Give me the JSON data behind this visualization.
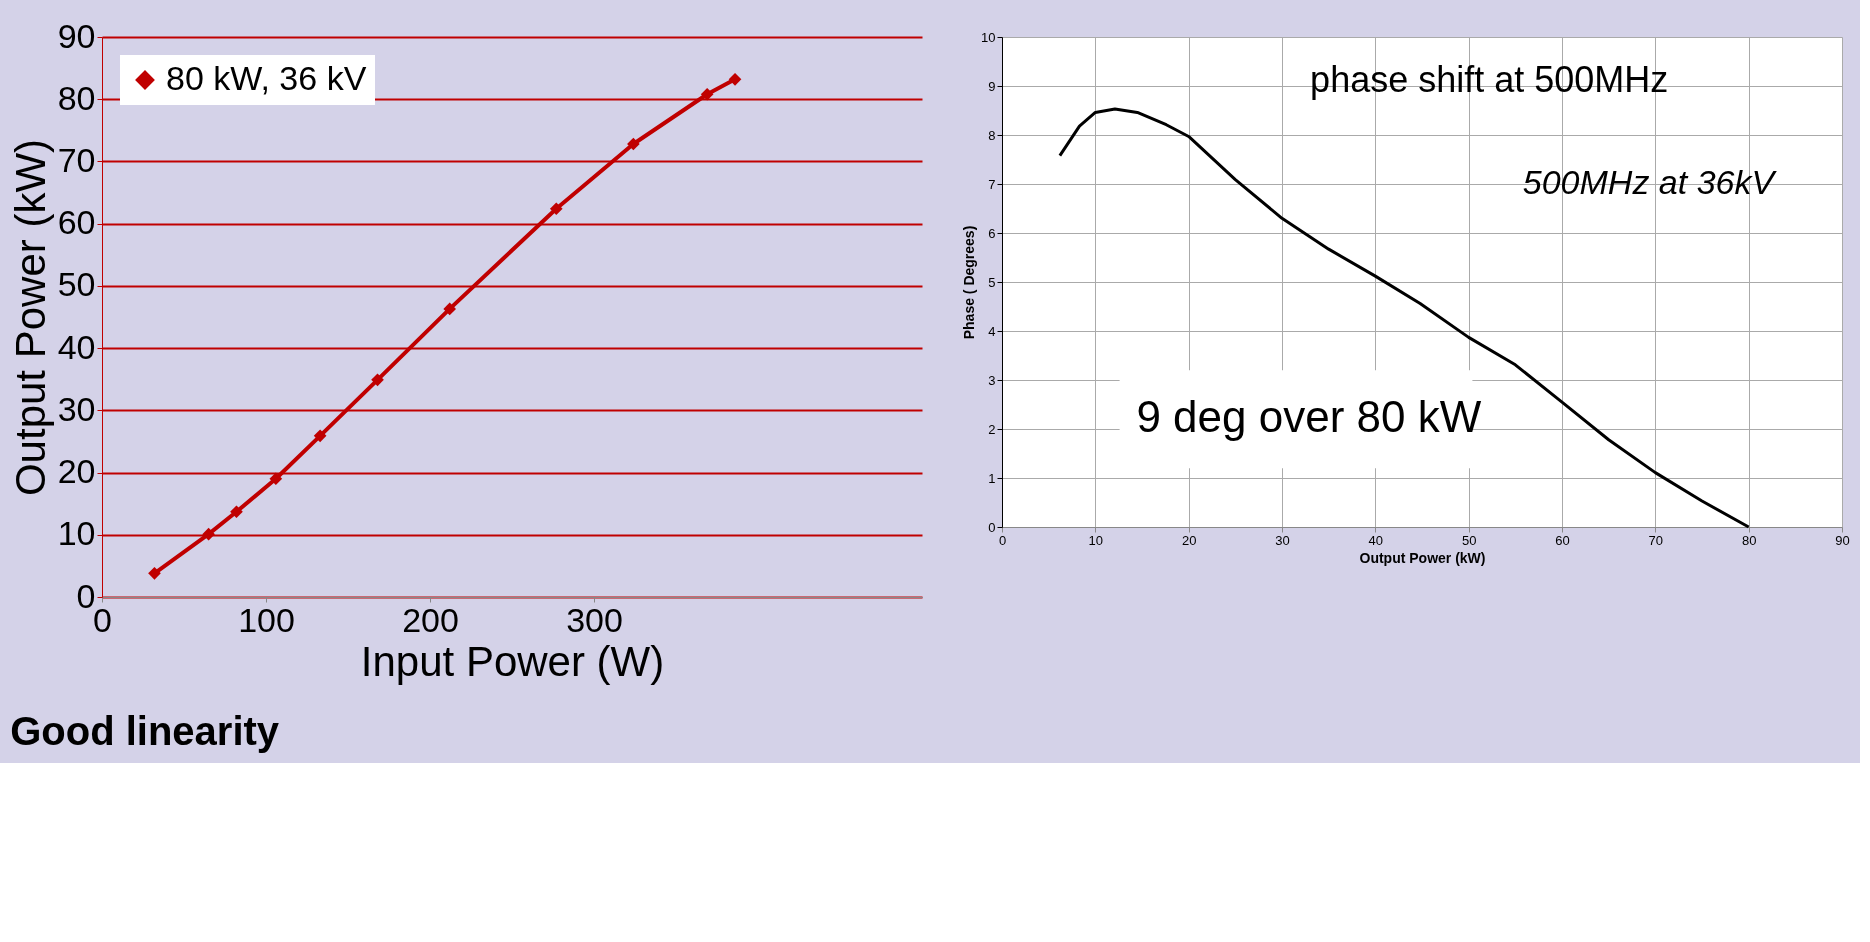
{
  "chart_data": [
    {
      "type": "line",
      "xlabel": "Input Power (W)",
      "ylabel": "Output Power (kW)",
      "x": [
        32,
        65,
        82,
        106,
        133,
        168,
        212,
        277,
        324,
        369,
        386
      ],
      "series": [
        {
          "name": "80 kW, 36 kV",
          "color": "#c00000",
          "values": [
            3.8,
            10.1,
            13.7,
            19.0,
            25.9,
            34.9,
            46.3,
            62.4,
            72.8,
            80.8,
            83.2
          ]
        }
      ],
      "xlim": [
        0,
        500
      ],
      "xticks": [
        0,
        100,
        200,
        300
      ],
      "ylim": [
        0,
        90
      ],
      "yticks": [
        0,
        10,
        20,
        30,
        40,
        50,
        60,
        70,
        80,
        90
      ],
      "grid": "y",
      "legend": "top left",
      "marker": "diamond",
      "line_style": "solid",
      "annotations": [
        "Good linearity"
      ]
    },
    {
      "type": "line",
      "title": "phase shift at 500MHz",
      "xlabel": "Output Power (kW)",
      "ylabel": "Phase ( Degrees)",
      "x": [
        6.2,
        8.3,
        10,
        12.1,
        14.5,
        17.6,
        20,
        25,
        30,
        35,
        40,
        44.8,
        50,
        55,
        60,
        65,
        70,
        75,
        80
      ],
      "series": [
        {
          "color": "#000000",
          "values": [
            7.58,
            8.18,
            8.46,
            8.53,
            8.46,
            8.21,
            7.97,
            7.09,
            6.3,
            5.67,
            5.12,
            4.56,
            3.87,
            3.31,
            2.55,
            1.78,
            1.11,
            0.53,
            0
          ]
        }
      ],
      "xlim": [
        0,
        90
      ],
      "xticks": [
        0,
        10,
        20,
        30,
        40,
        50,
        60,
        70,
        80,
        90
      ],
      "ylim": [
        0,
        10
      ],
      "yticks": [
        0,
        1,
        2,
        3,
        4,
        5,
        6,
        7,
        8,
        9,
        10
      ],
      "grid": true,
      "line_style": "solid",
      "annotations": [
        "500MHz at 36kV",
        "9 deg over 80 kW"
      ]
    }
  ]
}
